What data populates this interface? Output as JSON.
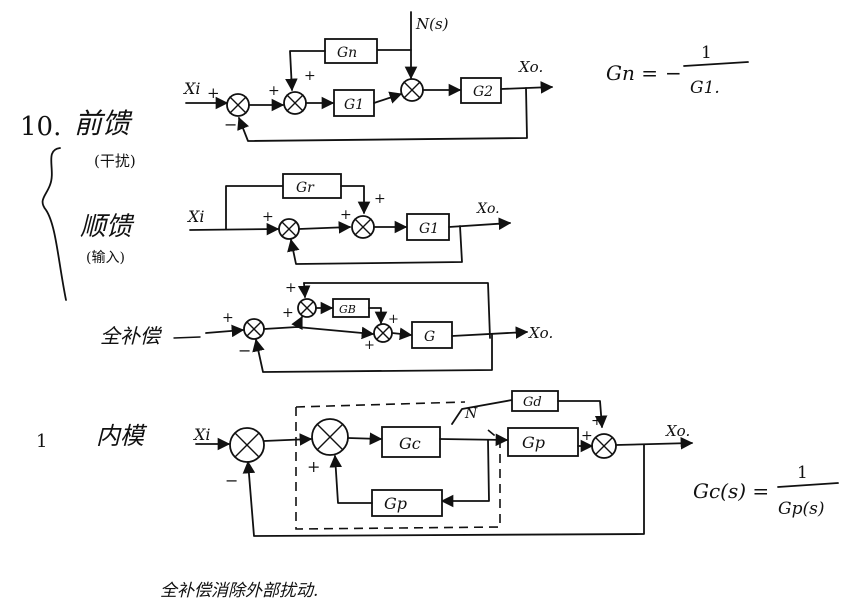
{
  "section_feedforward": {
    "number": "10.",
    "title": "前馈",
    "subtitle": "(干扰)",
    "input": "Xi",
    "disturbance": "N(s)",
    "output": "Xo.",
    "blocks": {
      "gn": "Gn",
      "g1": "G1",
      "g2": "G2"
    },
    "signs": {
      "s1_top": "+",
      "s1_bottom": "−",
      "s2_left": "+",
      "s2_top": "+"
    },
    "formula": {
      "lhs": "Gn =",
      "numerator": "1",
      "denominator": "G1.",
      "neg": "−"
    }
  },
  "section_forward_input": {
    "title": "顺馈",
    "subtitle": "(输入)",
    "input": "Xi",
    "output": "Xo.",
    "blocks": {
      "gr": "Gr",
      "g1": "G1"
    },
    "signs": {
      "s1": "+",
      "s2_left": "+",
      "s2_top": "+"
    }
  },
  "section_composite": {
    "title": "全补偿",
    "output": "Xo.",
    "blocks": {
      "gb": "GB",
      "g": "G"
    },
    "signs": {
      "s1_top": "+",
      "s1_bottom": "−",
      "s2": "+",
      "s3_top": "+",
      "s3_left": "+"
    }
  },
  "section_internal_model": {
    "number": "1",
    "title": "内模",
    "input": "Xi",
    "output": "Xo.",
    "disturbance": "N",
    "blocks": {
      "gc": "Gc",
      "gp": "Gp",
      "gd": "Gd",
      "gp_model": "Gp"
    },
    "signs": {
      "s1_bottom": "−",
      "s2_bottom": "+",
      "s3_top": "+",
      "s3_left": "+"
    },
    "formula": {
      "lhs": "Gc(s) =",
      "numerator": "1",
      "denominator": "Gp(s)"
    }
  },
  "footnote": "全补偿消除外部扰动."
}
